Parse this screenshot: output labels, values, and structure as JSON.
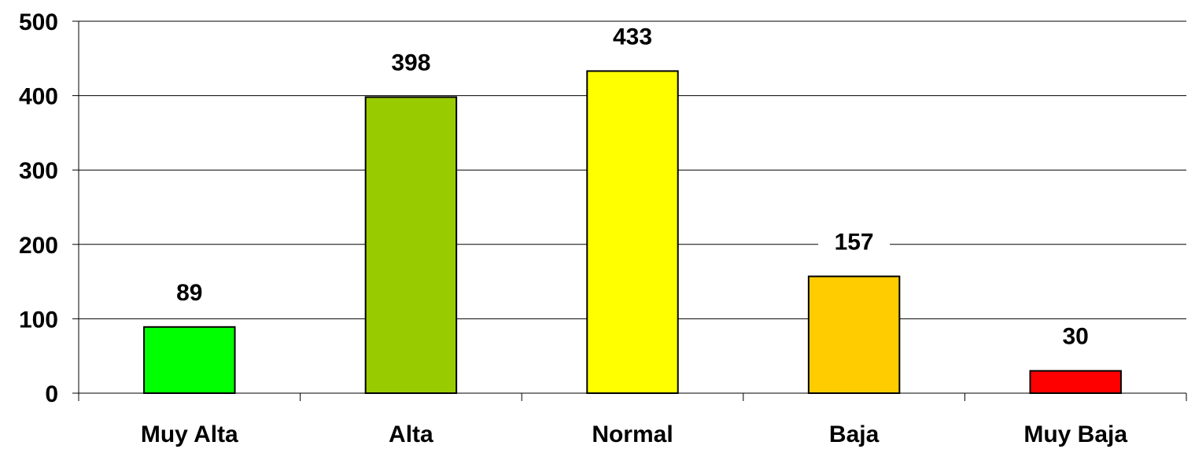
{
  "chart_data": {
    "type": "bar",
    "categories": [
      "Muy Alta",
      "Alta",
      "Normal",
      "Baja",
      "Muy Baja"
    ],
    "values": [
      89,
      398,
      433,
      157,
      30
    ],
    "data_labels": [
      "89",
      "398",
      "433",
      "157",
      "30"
    ],
    "yticks": [
      "0",
      "100",
      "200",
      "300",
      "400",
      "500"
    ],
    "ylim": [
      0,
      500
    ],
    "grid": true,
    "legend": "none",
    "colors": [
      "#00ff00",
      "#99cc00",
      "#ffff00",
      "#ffcc00",
      "#ff0000"
    ],
    "title": "",
    "xlabel": "",
    "ylabel": ""
  }
}
